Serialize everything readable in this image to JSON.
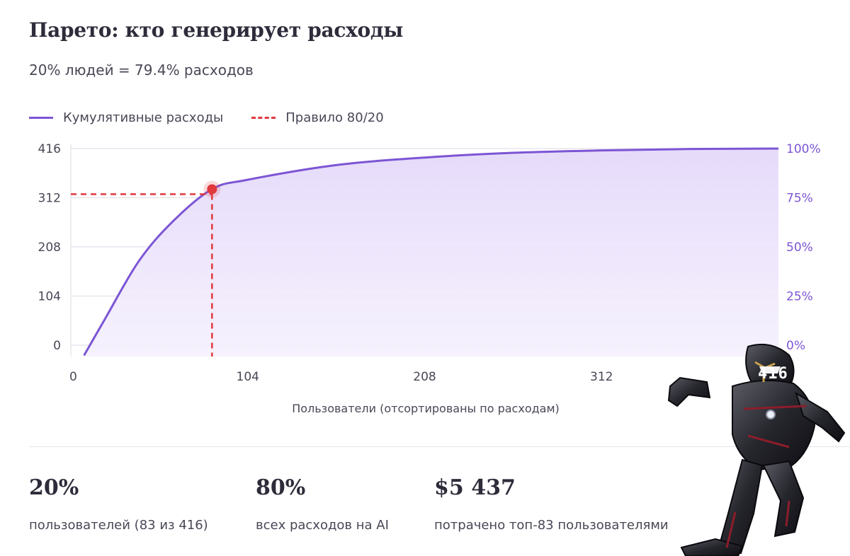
{
  "header": {
    "title": "Парето: кто генерирует расходы",
    "subtitle": "20% людей = 79.4% расходов"
  },
  "legend": {
    "cumulative_label": "Кумулятивные расходы",
    "rule_label": "Правило 80/20"
  },
  "chart_data": {
    "type": "area",
    "xlabel": "Пользователи (отсортированы по расходам)",
    "ylabel": "",
    "xlim": [
      0,
      416
    ],
    "ylim": [
      0,
      416
    ],
    "x_ticks": [
      "0",
      "104",
      "208",
      "312",
      "416"
    ],
    "y_ticks": [
      "0",
      "104",
      "208",
      "312",
      "416"
    ],
    "y2_ticks": [
      "0%",
      "25%",
      "50%",
      "75%",
      "100%"
    ],
    "series": [
      {
        "name": "Кумулятивные расходы",
        "x": [
          8,
          20,
          40,
          60,
          83,
          104,
          156,
          208,
          260,
          312,
          364,
          416
        ],
        "y": [
          -20,
          55,
          178,
          262,
          330,
          350,
          381,
          397,
          407,
          412,
          415,
          416
        ]
      }
    ],
    "rule_point": {
      "x": 83,
      "y": 330,
      "share_percent": 79.4
    },
    "grid": true,
    "colors": {
      "line": "#7c55d4",
      "fill": "#ece4fb",
      "rule": "#e0393e",
      "right_axis": "#7c55d4"
    }
  },
  "stats": [
    {
      "value": "20%",
      "label": "пользователей (83 из 416)"
    },
    {
      "value": "80%",
      "label": "всех расходов на AI"
    },
    {
      "value": "$5 437",
      "label": "потрачено топ-83 пользователями"
    }
  ],
  "overlay": {
    "badge": "416"
  }
}
